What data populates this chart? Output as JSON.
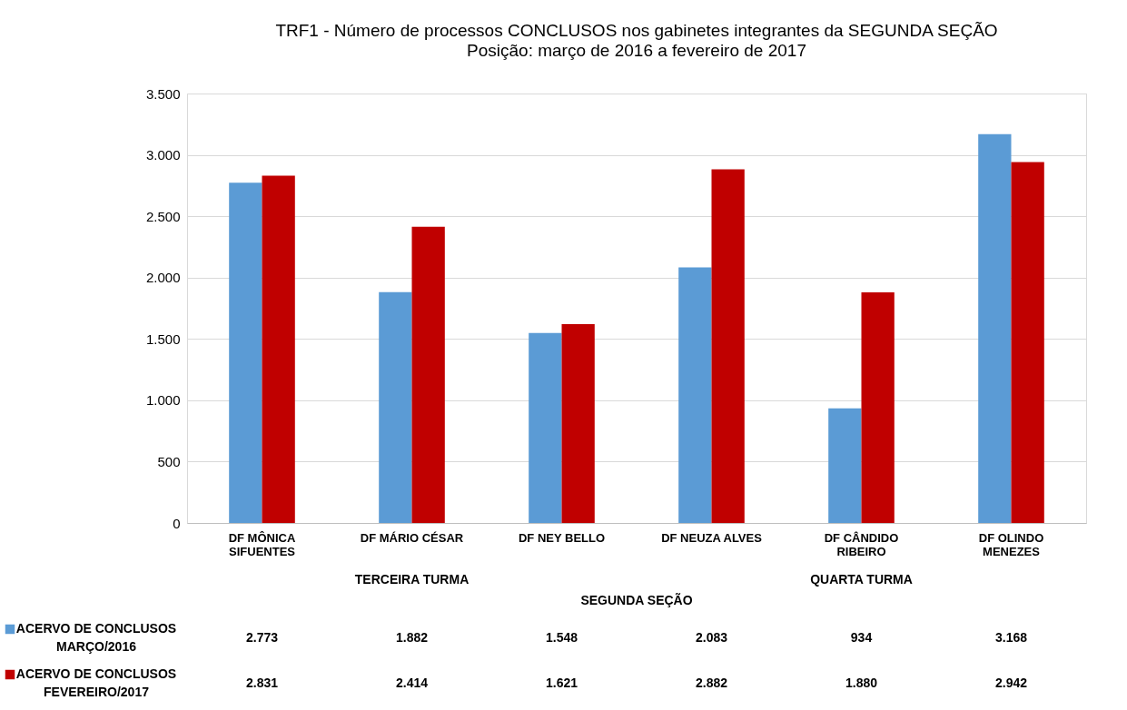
{
  "chart_data": {
    "type": "bar",
    "title": "TRF1 -  Número de processos CONCLUSOS nos gabinetes integrantes da SEGUNDA SEÇÃO",
    "subtitle": "Posição: março de 2016 a fevereiro de 2017",
    "categories": [
      "DF MÔNICA SIFUENTES",
      "DF MÁRIO CÉSAR",
      "DF NEY BELLO",
      "DF NEUZA ALVES",
      "DF CÂNDIDO RIBEIRO",
      "DF OLINDO MENEZES"
    ],
    "series": [
      {
        "name": "ACERVO DE CONCLUSOS MARÇO/2016",
        "color": "#5b9bd5",
        "values": [
          2773,
          1882,
          1548,
          2083,
          934,
          3168
        ],
        "value_labels": [
          "2.773",
          "1.882",
          "1.548",
          "2.083",
          "934",
          "3.168"
        ]
      },
      {
        "name": "ACERVO DE CONCLUSOS FEVEREIRO/2017",
        "color": "#c00000",
        "values": [
          2831,
          2414,
          1621,
          2882,
          1880,
          2942
        ],
        "value_labels": [
          "2.831",
          "2.414",
          "1.621",
          "2.882",
          "1.880",
          "2.942"
        ]
      }
    ],
    "ylim": [
      0,
      3500
    ],
    "yticks": [
      {
        "value": 0,
        "label": "0"
      },
      {
        "value": 500,
        "label": "500"
      },
      {
        "value": 1000,
        "label": "1.000"
      },
      {
        "value": 1500,
        "label": "1.500"
      },
      {
        "value": 2000,
        "label": "2.000"
      },
      {
        "value": 2500,
        "label": "2.500"
      },
      {
        "value": 3000,
        "label": "3.000"
      },
      {
        "value": 3500,
        "label": "3.500"
      }
    ],
    "grid": "y",
    "legend": "bottom left",
    "annotations": [
      "TERCEIRA TURMA",
      "QUARTA TURMA",
      "SEGUNDA SEÇÃO"
    ]
  }
}
